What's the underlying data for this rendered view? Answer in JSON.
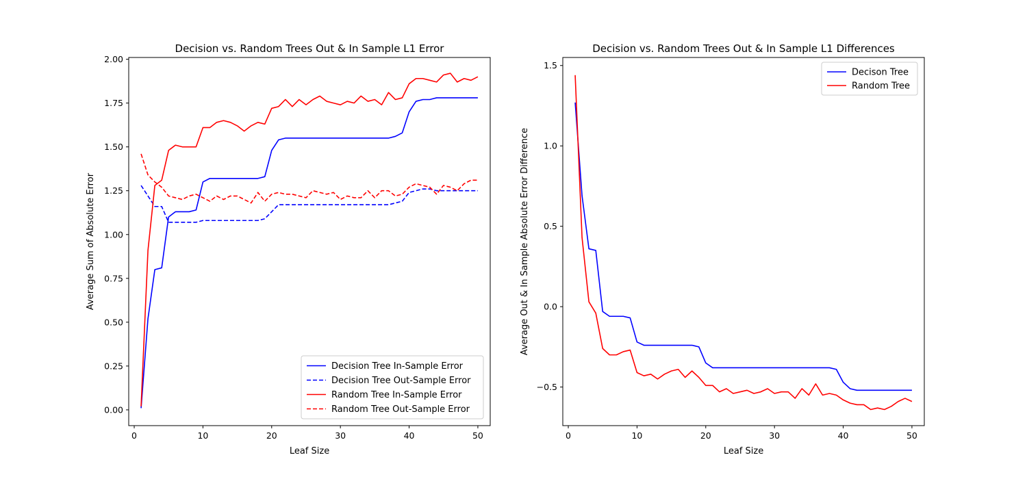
{
  "chart_data": [
    {
      "type": "line",
      "title": "Decision vs. Random Trees Out & In Sample L1 Error",
      "xlabel": "Leaf Size",
      "ylabel": "Average Sum of Absolute Error",
      "xlim": [
        -0.8,
        51.8
      ],
      "ylim": [
        -0.09,
        2.01
      ],
      "xticks": [
        0,
        10,
        20,
        30,
        40,
        50
      ],
      "xtick_labels": [
        "0",
        "10",
        "20",
        "30",
        "40",
        "50"
      ],
      "yticks": [
        0,
        0.25,
        0.5,
        0.75,
        1.0,
        1.25,
        1.5,
        1.75,
        2.0
      ],
      "ytick_labels": [
        "0.00",
        "0.25",
        "0.50",
        "0.75",
        "1.00",
        "1.25",
        "1.50",
        "1.75",
        "2.00"
      ],
      "grid": false,
      "legend_position": "lower-right",
      "x_start": 1,
      "series": [
        {
          "name": "Decision Tree In-Sample Error",
          "color": "#0000ff",
          "dash": "solid",
          "values": [
            0.01,
            0.52,
            0.8,
            0.81,
            1.1,
            1.13,
            1.13,
            1.13,
            1.14,
            1.3,
            1.32,
            1.32,
            1.32,
            1.32,
            1.32,
            1.32,
            1.32,
            1.32,
            1.33,
            1.48,
            1.54,
            1.55,
            1.55,
            1.55,
            1.55,
            1.55,
            1.55,
            1.55,
            1.55,
            1.55,
            1.55,
            1.55,
            1.55,
            1.55,
            1.55,
            1.55,
            1.55,
            1.56,
            1.58,
            1.7,
            1.76,
            1.77,
            1.77,
            1.78,
            1.78,
            1.78,
            1.78,
            1.78,
            1.78,
            1.78
          ]
        },
        {
          "name": "Decision Tree Out-Sample Error",
          "color": "#0000ff",
          "dash": "dashed",
          "values": [
            1.28,
            1.22,
            1.16,
            1.16,
            1.07,
            1.07,
            1.07,
            1.07,
            1.07,
            1.08,
            1.08,
            1.08,
            1.08,
            1.08,
            1.08,
            1.08,
            1.08,
            1.08,
            1.09,
            1.13,
            1.17,
            1.17,
            1.17,
            1.17,
            1.17,
            1.17,
            1.17,
            1.17,
            1.17,
            1.17,
            1.17,
            1.17,
            1.17,
            1.17,
            1.17,
            1.17,
            1.17,
            1.18,
            1.19,
            1.24,
            1.25,
            1.26,
            1.26,
            1.25,
            1.25,
            1.25,
            1.25,
            1.25,
            1.25,
            1.25
          ]
        },
        {
          "name": "Random Tree In-Sample Error",
          "color": "#ff0000",
          "dash": "solid",
          "values": [
            0.02,
            0.91,
            1.28,
            1.31,
            1.48,
            1.51,
            1.5,
            1.5,
            1.5,
            1.61,
            1.61,
            1.64,
            1.65,
            1.64,
            1.62,
            1.59,
            1.62,
            1.64,
            1.63,
            1.72,
            1.73,
            1.77,
            1.73,
            1.77,
            1.74,
            1.77,
            1.79,
            1.76,
            1.75,
            1.74,
            1.76,
            1.75,
            1.79,
            1.76,
            1.77,
            1.74,
            1.81,
            1.77,
            1.78,
            1.86,
            1.89,
            1.89,
            1.88,
            1.87,
            1.91,
            1.92,
            1.87,
            1.89,
            1.88,
            1.9
          ]
        },
        {
          "name": "Random Tree Out-Sample Error",
          "color": "#ff0000",
          "dash": "dashed",
          "values": [
            1.46,
            1.34,
            1.3,
            1.27,
            1.22,
            1.21,
            1.2,
            1.22,
            1.23,
            1.21,
            1.19,
            1.22,
            1.2,
            1.22,
            1.22,
            1.2,
            1.18,
            1.24,
            1.19,
            1.23,
            1.24,
            1.23,
            1.23,
            1.22,
            1.21,
            1.25,
            1.24,
            1.23,
            1.24,
            1.2,
            1.22,
            1.21,
            1.21,
            1.25,
            1.21,
            1.25,
            1.25,
            1.22,
            1.23,
            1.27,
            1.29,
            1.28,
            1.27,
            1.23,
            1.28,
            1.27,
            1.25,
            1.29,
            1.31,
            1.31
          ]
        }
      ]
    },
    {
      "type": "line",
      "title": "Decision vs. Random Trees Out & In Sample L1 Differences",
      "xlabel": "Leaf Size",
      "ylabel": "Average Out & In Sample Absolute Error Difference",
      "xlim": [
        -0.8,
        51.8
      ],
      "ylim": [
        -0.74,
        1.55
      ],
      "xticks": [
        0,
        10,
        20,
        30,
        40,
        50
      ],
      "xtick_labels": [
        "0",
        "10",
        "20",
        "30",
        "40",
        "50"
      ],
      "yticks": [
        -0.5,
        0.0,
        0.5,
        1.0,
        1.5
      ],
      "ytick_labels": [
        "−0.5",
        "0.0",
        "0.5",
        "1.0",
        "1.5"
      ],
      "grid": false,
      "legend_position": "upper-right",
      "x_start": 1,
      "series": [
        {
          "name": "Decison Tree",
          "color": "#0000ff",
          "dash": "solid",
          "values": [
            1.27,
            0.69,
            0.36,
            0.35,
            -0.03,
            -0.06,
            -0.06,
            -0.06,
            -0.07,
            -0.22,
            -0.24,
            -0.24,
            -0.24,
            -0.24,
            -0.24,
            -0.24,
            -0.24,
            -0.24,
            -0.25,
            -0.35,
            -0.38,
            -0.38,
            -0.38,
            -0.38,
            -0.38,
            -0.38,
            -0.38,
            -0.38,
            -0.38,
            -0.38,
            -0.38,
            -0.38,
            -0.38,
            -0.38,
            -0.38,
            -0.38,
            -0.38,
            -0.38,
            -0.39,
            -0.47,
            -0.51,
            -0.52,
            -0.52,
            -0.52,
            -0.52,
            -0.52,
            -0.52,
            -0.52,
            -0.52,
            -0.52
          ]
        },
        {
          "name": "Random Tree",
          "color": "#ff0000",
          "dash": "solid",
          "values": [
            1.44,
            0.43,
            0.03,
            -0.04,
            -0.26,
            -0.3,
            -0.3,
            -0.28,
            -0.27,
            -0.41,
            -0.43,
            -0.42,
            -0.45,
            -0.42,
            -0.4,
            -0.39,
            -0.44,
            -0.4,
            -0.44,
            -0.49,
            -0.49,
            -0.53,
            -0.51,
            -0.54,
            -0.53,
            -0.52,
            -0.54,
            -0.53,
            -0.51,
            -0.54,
            -0.53,
            -0.53,
            -0.57,
            -0.51,
            -0.55,
            -0.48,
            -0.55,
            -0.54,
            -0.55,
            -0.58,
            -0.6,
            -0.61,
            -0.61,
            -0.64,
            -0.63,
            -0.64,
            -0.62,
            -0.59,
            -0.57,
            -0.59
          ]
        }
      ]
    }
  ]
}
